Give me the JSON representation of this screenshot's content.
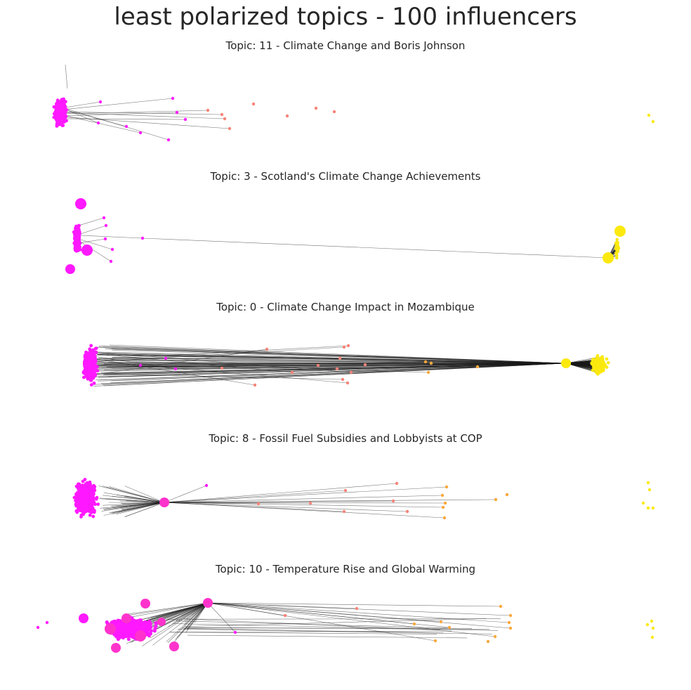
{
  "title": "least polarized topics - 100 influencers",
  "colors": {
    "left_community": "#ff19ff",
    "left_hub": "#ff33cc",
    "bridge_salmon": "#f78378",
    "bridge_orange": "#f9a83c",
    "right_community": "#fbe90e",
    "edge": "#1a1a1a"
  },
  "panels": [
    {
      "title": "Topic: 11 - Climate Change and Boris Johnson"
    },
    {
      "title": "Topic: 3 - Scotland's Climate Change Achievements"
    },
    {
      "title": "Topic: 0 - Climate Change Impact in Mozambique"
    },
    {
      "title": "Topic: 8 - Fossil Fuel Subsidies and Lobbyists at COP"
    },
    {
      "title": "Topic: 10 - Temperature Rise and Global Warming"
    }
  ]
}
